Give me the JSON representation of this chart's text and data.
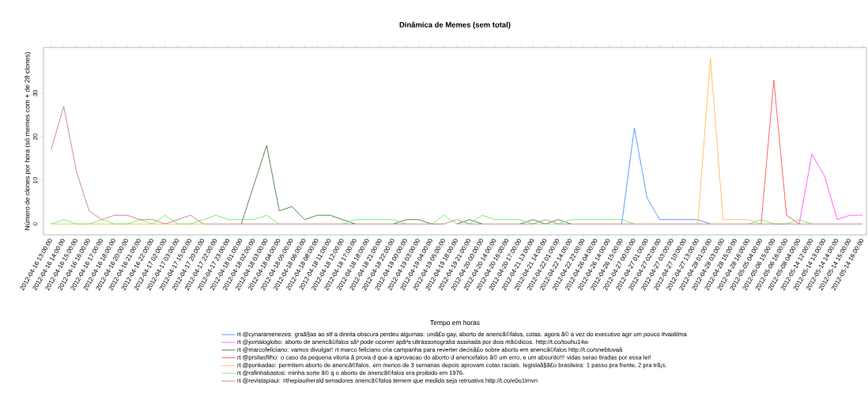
{
  "chart_data": {
    "type": "line",
    "title": "Dinâmica de Memes (sem total)",
    "xlabel": "Tempo em horas",
    "ylabel": "Número de clones por hora (só memes com + de  28  clones)",
    "categories": [
      "2012-04-16 13:00:00",
      "2012-04-16 14:00:00",
      "2012-04-16 15:00:00",
      "2012-04-16 16:00:00",
      "2012-04-16 17:00:00",
      "2012-04-16 18:00:00",
      "2012-04-16 20:00:00",
      "2012-04-16 21:00:00",
      "2012-04-16 22:00:00",
      "2012-04-17 02:00:00",
      "2012-04-17 03:00:00",
      "2012-04-17 15:00:00",
      "2012-04-17 20:00:00",
      "2012-04-17 22:00:00",
      "2012-04-17 23:00:00",
      "2012-04-18 01:00:00",
      "2012-04-18 02:00:00",
      "2012-04-18 03:00:00",
      "2012-04-18 04:00:00",
      "2012-04-18 05:00:00",
      "2012-04-18 06:00:00",
      "2012-04-18 08:00:00",
      "2012-04-18 11:00:00",
      "2012-04-18 12:00:00",
      "2012-04-18 17:00:00",
      "2012-04-18 18:00:00",
      "2012-04-18 21:00:00",
      "2012-04-18 22:00:00",
      "2012-04-19 00:00:00",
      "2012-04-19 03:00:00",
      "2012-04-19 04:00:00",
      "2012-04-19 05:00:00",
      "2012-04-19 18:00:00",
      "2012-04-19 21:00:00",
      "2012-04-20 00:00:00",
      "2012-04-20 14:00:00",
      "2012-04-20 16:00:00",
      "2012-04-20 17:00:00",
      "2012-04-21 13:00:00",
      "2012-04-21 14:00:00",
      "2012-04-22 01:00:00",
      "2012-04-22 14:00:00",
      "2012-04-22 22:00:00",
      "2012-04-26 04:00:00",
      "2012-04-26 14:00:00",
      "2012-04-26 15:00:00",
      "2012-04-27 00:00:00",
      "2012-04-27 01:00:00",
      "2012-04-27 02:00:00",
      "2012-04-27 03:00:00",
      "2012-04-27 10:00:00",
      "2012-04-27 13:00:00",
      "2012-04-28 01:00:00",
      "2012-04-28 03:00:00",
      "2012-04-28 15:00:00",
      "2012-04-28 16:00:00",
      "2012-05-05 04:00:00",
      "2012-05-06 15:00:00",
      "2012-05-06 16:00:00",
      "2012-05-08 04:00:00",
      "2012-05-14 12:00:00",
      "2012-05-14 13:00:00",
      "2012-05-14 14:00:00",
      "2012-05-14 15:00:00",
      "2012-05-14 16:00:00"
    ],
    "ylim": [
      -2.5,
      40.5
    ],
    "yticks": [
      0,
      10,
      20,
      30
    ],
    "legend": "bottom",
    "series": [
      {
        "name": "rt @cynaramenezes: graã§as ao stf a direita obscura perdeu algumas: uniã£o gay, aborto de anencã©falos, cotas. agora ã© a vez do executivo agir um pouco #vaidilma",
        "color": "#4080ff",
        "values": [
          null,
          null,
          null,
          null,
          null,
          null,
          null,
          null,
          null,
          null,
          null,
          null,
          null,
          null,
          null,
          null,
          null,
          null,
          null,
          null,
          null,
          null,
          null,
          null,
          null,
          null,
          null,
          null,
          null,
          null,
          null,
          null,
          null,
          null,
          null,
          null,
          null,
          null,
          null,
          null,
          null,
          null,
          null,
          null,
          null,
          0,
          22,
          6,
          1,
          1,
          1,
          1,
          0,
          null,
          null,
          null,
          null,
          null,
          null,
          null,
          null,
          null,
          null,
          null,
          null
        ]
      },
      {
        "name": "rt @jornaloglobo: aborto de anencã©falos sã³ pode ocorrer apã³s ultrassonografia assinada por dois mã©dicos. http://t.co/touhu14w",
        "color": "#ff40ff",
        "values": [
          null,
          null,
          null,
          null,
          null,
          null,
          null,
          null,
          null,
          null,
          null,
          null,
          null,
          null,
          null,
          null,
          null,
          null,
          null,
          null,
          null,
          null,
          null,
          null,
          null,
          null,
          null,
          null,
          null,
          null,
          null,
          null,
          null,
          null,
          null,
          null,
          null,
          null,
          null,
          null,
          null,
          null,
          null,
          null,
          null,
          null,
          null,
          null,
          null,
          null,
          null,
          null,
          null,
          null,
          null,
          null,
          null,
          null,
          null,
          0,
          16,
          11,
          1,
          2,
          2
        ]
      },
      {
        "name": "rt @marcofeliciano: vamos divulgar! rt marco feliciano cria campanha para reverter decisã£o sobre aborto em anencã©falos  http://t.co/snebtuvaâ",
        "color": "#2e6b2e",
        "values": [
          null,
          null,
          null,
          null,
          null,
          null,
          null,
          null,
          null,
          null,
          null,
          null,
          null,
          null,
          null,
          0,
          9,
          18,
          3,
          4,
          1,
          2,
          2,
          1,
          0,
          null,
          null,
          0,
          1,
          1,
          0,
          null,
          0,
          1,
          0,
          null,
          null,
          0,
          1,
          0,
          1,
          0,
          null,
          null,
          null,
          null,
          null,
          null,
          null,
          null,
          null,
          null,
          null,
          null,
          null,
          null,
          null,
          null,
          null,
          null,
          null,
          null,
          null,
          null,
          null
        ]
      },
      {
        "name": "rt @prsilasfilho: o caso da pequena vitoria ã prova d que a aprovacao do aborto d anencefalos ã© um erro, e um absurdo!!! vidas serao tiradas por essa lei!",
        "color": "#ff4040",
        "values": [
          null,
          null,
          null,
          null,
          null,
          null,
          null,
          null,
          null,
          null,
          null,
          null,
          null,
          null,
          null,
          null,
          null,
          null,
          null,
          null,
          null,
          null,
          null,
          null,
          null,
          null,
          null,
          null,
          null,
          null,
          null,
          null,
          null,
          null,
          null,
          null,
          null,
          null,
          null,
          null,
          null,
          null,
          null,
          null,
          null,
          null,
          null,
          null,
          null,
          null,
          null,
          null,
          null,
          null,
          null,
          null,
          0,
          33,
          2,
          0,
          null,
          null,
          null,
          null,
          null
        ]
      },
      {
        "name": "rt @punkadao: permitem aborto de anencã©falos. em menos de 3 semanas depois aprovam cotas raciais. legislaã§ã£o brasileira: 1 passo pra frente, 2 pra trã¡s.",
        "color": "#ffb347",
        "values": [
          0,
          0,
          0,
          0,
          0,
          0,
          0,
          0,
          0,
          0,
          0,
          0,
          0,
          null,
          null,
          null,
          null,
          null,
          null,
          null,
          null,
          null,
          null,
          null,
          null,
          null,
          null,
          null,
          null,
          null,
          0,
          0,
          null,
          null,
          null,
          null,
          null,
          null,
          null,
          null,
          null,
          null,
          null,
          null,
          null,
          null,
          null,
          null,
          null,
          null,
          null,
          0,
          38,
          1,
          1,
          1,
          0,
          null,
          null,
          null,
          null,
          null,
          null,
          null,
          null
        ]
      },
      {
        "name": "rt @rafinhabastos: minha sorte ã© q o aborto de anencã©falos era proibido em 1976.",
        "color": "#55ee55",
        "values": [
          0,
          1,
          0,
          0,
          1,
          0,
          0,
          1,
          0,
          2,
          0,
          0,
          1,
          2,
          1,
          1,
          1,
          2,
          0,
          null,
          null,
          null,
          null,
          0,
          1,
          1,
          1,
          1,
          0,
          null,
          0,
          2,
          0,
          0,
          2,
          1,
          1,
          1,
          0,
          0,
          0,
          1,
          1,
          1,
          1,
          1,
          0,
          null,
          null,
          null,
          null,
          null,
          null,
          null,
          null,
          0,
          1,
          0,
          0,
          1,
          0,
          null,
          null,
          null,
          null
        ]
      },
      {
        "name": "rt @revistapiaui: #thepiauiherald senadores anencã©falos temem que medida seja retroativa http://t.co/e0o1lmvn",
        "color": "#c07070",
        "values": [
          17,
          27,
          12,
          3,
          1,
          2,
          2,
          1,
          1,
          0,
          1,
          2,
          0,
          0,
          0,
          0,
          0,
          0,
          0,
          0,
          0,
          0,
          0,
          0,
          0,
          0,
          0,
          0,
          0,
          0,
          0,
          0,
          1,
          0,
          0,
          0,
          0,
          0,
          0,
          1,
          0,
          0,
          0,
          0,
          0,
          0,
          0,
          0,
          0,
          0,
          0,
          0,
          0,
          0,
          0,
          0,
          0,
          0,
          0,
          0,
          0,
          0,
          0,
          0,
          0
        ]
      }
    ]
  }
}
